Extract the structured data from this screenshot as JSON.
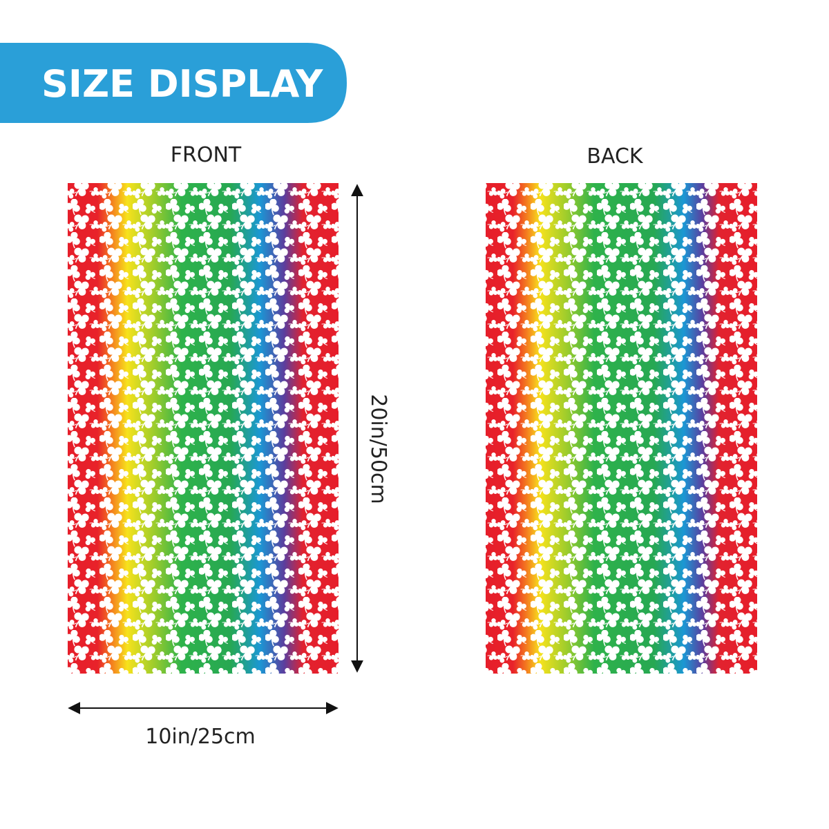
{
  "header": {
    "title": "SIZE DISPLAY"
  },
  "panels": {
    "front": {
      "label": "FRONT"
    },
    "back": {
      "label": "BACK"
    }
  },
  "dimensions": {
    "height": "20in/50cm",
    "width": "10in/25cm"
  }
}
